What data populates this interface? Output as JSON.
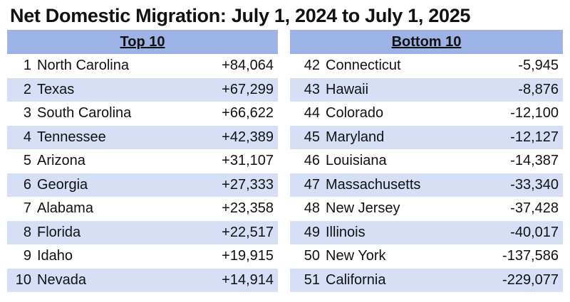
{
  "title": "Net Domestic Migration: July 1, 2024 to July 1, 2025",
  "top": {
    "header": "Top 10",
    "rows": [
      {
        "rank": "1",
        "state": "North Carolina",
        "value": "+84,064"
      },
      {
        "rank": "2",
        "state": "Texas",
        "value": "+67,299"
      },
      {
        "rank": "3",
        "state": "South Carolina",
        "value": "+66,622"
      },
      {
        "rank": "4",
        "state": "Tennessee",
        "value": "+42,389"
      },
      {
        "rank": "5",
        "state": "Arizona",
        "value": "+31,107"
      },
      {
        "rank": "6",
        "state": "Georgia",
        "value": "+27,333"
      },
      {
        "rank": "7",
        "state": "Alabama",
        "value": "+23,358"
      },
      {
        "rank": "8",
        "state": "Florida",
        "value": "+22,517"
      },
      {
        "rank": "9",
        "state": "Idaho",
        "value": "+19,915"
      },
      {
        "rank": "10",
        "state": "Nevada",
        "value": "+14,914"
      }
    ]
  },
  "bottom": {
    "header": "Bottom 10",
    "rows": [
      {
        "rank": "42",
        "state": "Connecticut",
        "value": "-5,945"
      },
      {
        "rank": "43",
        "state": "Hawaii",
        "value": "-8,876"
      },
      {
        "rank": "44",
        "state": "Colorado",
        "value": "-12,100"
      },
      {
        "rank": "45",
        "state": "Maryland",
        "value": "-12,127"
      },
      {
        "rank": "46",
        "state": "Louisiana",
        "value": "-14,387"
      },
      {
        "rank": "47",
        "state": "Massachusetts",
        "value": "-33,340"
      },
      {
        "rank": "48",
        "state": "New Jersey",
        "value": "-37,428"
      },
      {
        "rank": "49",
        "state": "Illinois",
        "value": "-40,017"
      },
      {
        "rank": "50",
        "state": "New York",
        "value": "-137,586"
      },
      {
        "rank": "51",
        "state": "California",
        "value": "-229,077"
      }
    ]
  },
  "colors": {
    "header_bg": "#9db3e6",
    "row_alt_bg": "#d6dff6"
  }
}
